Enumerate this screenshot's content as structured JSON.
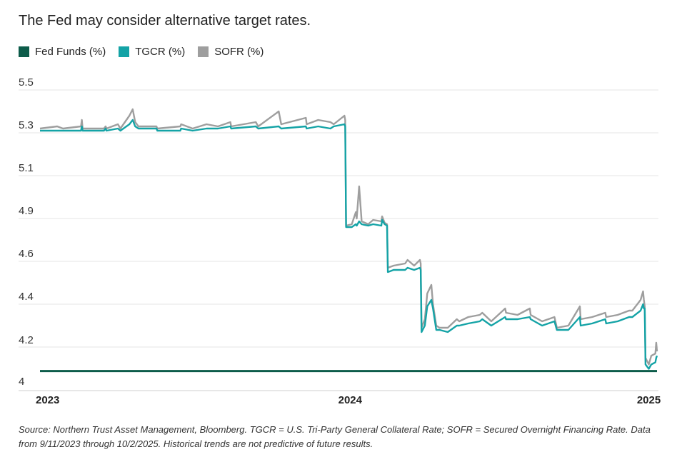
{
  "header": {
    "title": "The Fed may consider alternative target rates."
  },
  "legend": [
    {
      "label": "Fed Funds (%)",
      "color": "#0d5c4a"
    },
    {
      "label": "TGCR (%)",
      "color": "#14a3a6"
    },
    {
      "label": "SOFR (%)",
      "color": "#9e9e9e"
    }
  ],
  "footer": {
    "source": "Source: Northern Trust Asset Management, Bloomberg. TGCR = U.S. Tri-Party General Collateral Rate; SOFR = Secured Overnight Financing Rate. Data from 9/11/2023 through 10/2/2025. Historical trends are not predictive of future results."
  },
  "chart_data": {
    "type": "line",
    "title": "The Fed may consider alternative target rates.",
    "xlabel": "",
    "ylabel": "",
    "xlim": [
      "2023-09-11",
      "2025-10-02"
    ],
    "ylim": [
      4.0,
      5.5
    ],
    "x_tick_labels": [
      {
        "label": "2023",
        "date": "2023-09-11"
      },
      {
        "label": "2024",
        "date": "2024-09-23"
      },
      {
        "label": "2025",
        "date": "2025-09-22"
      }
    ],
    "y_tick_labels": [
      "5.5",
      "5.3",
      "5.1",
      "4.9",
      "4.6",
      "4.4",
      "4.2",
      "4"
    ],
    "y_tick_values": [
      5.5,
      5.3,
      5.1,
      4.9,
      4.6,
      4.4,
      4.2,
      4.0
    ],
    "grid": true,
    "legend_position": "top-left",
    "series": [
      {
        "name": "Fed Funds (%)",
        "color": "#0d5c4a",
        "points": [
          [
            "2023-09-11",
            4.09
          ],
          [
            "2025-10-02",
            4.09
          ]
        ]
      },
      {
        "name": "TGCR (%)",
        "color": "#14a3a6",
        "points": [
          [
            "2023-09-11",
            5.31
          ],
          [
            "2023-10-09",
            5.31
          ],
          [
            "2023-10-31",
            5.31
          ],
          [
            "2023-11-01",
            5.33
          ],
          [
            "2023-11-02",
            5.31
          ],
          [
            "2023-11-28",
            5.31
          ],
          [
            "2023-11-30",
            5.32
          ],
          [
            "2023-12-01",
            5.31
          ],
          [
            "2023-12-15",
            5.32
          ],
          [
            "2023-12-18",
            5.31
          ],
          [
            "2023-12-29",
            5.34
          ],
          [
            "2024-01-02",
            5.36
          ],
          [
            "2024-01-05",
            5.33
          ],
          [
            "2024-01-09",
            5.32
          ],
          [
            "2024-01-31",
            5.32
          ],
          [
            "2024-02-01",
            5.31
          ],
          [
            "2024-02-29",
            5.31
          ],
          [
            "2024-03-01",
            5.32
          ],
          [
            "2024-03-15",
            5.31
          ],
          [
            "2024-04-01",
            5.32
          ],
          [
            "2024-04-15",
            5.32
          ],
          [
            "2024-04-30",
            5.33
          ],
          [
            "2024-05-01",
            5.32
          ],
          [
            "2024-05-31",
            5.33
          ],
          [
            "2024-06-03",
            5.32
          ],
          [
            "2024-06-28",
            5.33
          ],
          [
            "2024-07-01",
            5.32
          ],
          [
            "2024-07-31",
            5.33
          ],
          [
            "2024-08-01",
            5.32
          ],
          [
            "2024-08-15",
            5.33
          ],
          [
            "2024-08-30",
            5.32
          ],
          [
            "2024-09-03",
            5.33
          ],
          [
            "2024-09-16",
            5.34
          ],
          [
            "2024-09-17",
            5.33
          ],
          [
            "2024-09-18",
            4.84
          ],
          [
            "2024-09-25",
            4.84
          ],
          [
            "2024-09-30",
            4.86
          ],
          [
            "2024-10-01",
            4.85
          ],
          [
            "2024-10-04",
            4.88
          ],
          [
            "2024-10-07",
            4.86
          ],
          [
            "2024-10-15",
            4.85
          ],
          [
            "2024-10-21",
            4.86
          ],
          [
            "2024-10-31",
            4.85
          ],
          [
            "2024-11-01",
            4.89
          ],
          [
            "2024-11-04",
            4.86
          ],
          [
            "2024-11-07",
            4.85
          ],
          [
            "2024-11-08",
            4.55
          ],
          [
            "2024-11-15",
            4.56
          ],
          [
            "2024-11-29",
            4.56
          ],
          [
            "2024-12-02",
            4.57
          ],
          [
            "2024-12-10",
            4.56
          ],
          [
            "2024-12-17",
            4.57
          ],
          [
            "2024-12-18",
            4.56
          ],
          [
            "2024-12-19",
            4.27
          ],
          [
            "2024-12-23",
            4.3
          ],
          [
            "2024-12-26",
            4.39
          ],
          [
            "2024-12-31",
            4.42
          ],
          [
            "2025-01-02",
            4.38
          ],
          [
            "2025-01-06",
            4.28
          ],
          [
            "2025-01-10",
            4.28
          ],
          [
            "2025-01-20",
            4.27
          ],
          [
            "2025-01-31",
            4.3
          ],
          [
            "2025-02-03",
            4.3
          ],
          [
            "2025-02-14",
            4.31
          ],
          [
            "2025-02-28",
            4.32
          ],
          [
            "2025-03-03",
            4.33
          ],
          [
            "2025-03-14",
            4.3
          ],
          [
            "2025-03-31",
            4.34
          ],
          [
            "2025-04-01",
            4.33
          ],
          [
            "2025-04-15",
            4.33
          ],
          [
            "2025-04-30",
            4.34
          ],
          [
            "2025-05-01",
            4.33
          ],
          [
            "2025-05-15",
            4.3
          ],
          [
            "2025-05-30",
            4.32
          ],
          [
            "2025-06-02",
            4.28
          ],
          [
            "2025-06-16",
            4.28
          ],
          [
            "2025-06-30",
            4.34
          ],
          [
            "2025-07-01",
            4.3
          ],
          [
            "2025-07-15",
            4.31
          ],
          [
            "2025-07-31",
            4.33
          ],
          [
            "2025-08-01",
            4.31
          ],
          [
            "2025-08-15",
            4.32
          ],
          [
            "2025-08-29",
            4.34
          ],
          [
            "2025-09-02",
            4.34
          ],
          [
            "2025-09-12",
            4.37
          ],
          [
            "2025-09-15",
            4.4
          ],
          [
            "2025-09-16",
            4.38
          ],
          [
            "2025-09-17",
            4.38
          ],
          [
            "2025-09-18",
            4.12
          ],
          [
            "2025-09-22",
            4.1
          ],
          [
            "2025-09-25",
            4.12
          ],
          [
            "2025-09-30",
            4.13
          ],
          [
            "2025-10-01",
            4.15
          ],
          [
            "2025-10-02",
            4.16
          ]
        ]
      },
      {
        "name": "SOFR (%)",
        "color": "#9e9e9e",
        "points": [
          [
            "2023-09-11",
            5.32
          ],
          [
            "2023-10-02",
            5.33
          ],
          [
            "2023-10-09",
            5.32
          ],
          [
            "2023-10-31",
            5.33
          ],
          [
            "2023-11-01",
            5.36
          ],
          [
            "2023-11-02",
            5.32
          ],
          [
            "2023-11-28",
            5.32
          ],
          [
            "2023-11-30",
            5.33
          ],
          [
            "2023-12-01",
            5.32
          ],
          [
            "2023-12-15",
            5.34
          ],
          [
            "2023-12-18",
            5.32
          ],
          [
            "2023-12-29",
            5.38
          ],
          [
            "2024-01-02",
            5.41
          ],
          [
            "2024-01-05",
            5.35
          ],
          [
            "2024-01-09",
            5.33
          ],
          [
            "2024-01-31",
            5.33
          ],
          [
            "2024-02-01",
            5.32
          ],
          [
            "2024-02-29",
            5.33
          ],
          [
            "2024-03-01",
            5.34
          ],
          [
            "2024-03-15",
            5.32
          ],
          [
            "2024-04-01",
            5.34
          ],
          [
            "2024-04-15",
            5.33
          ],
          [
            "2024-04-30",
            5.35
          ],
          [
            "2024-05-01",
            5.33
          ],
          [
            "2024-05-31",
            5.35
          ],
          [
            "2024-06-03",
            5.33
          ],
          [
            "2024-06-28",
            5.4
          ],
          [
            "2024-07-01",
            5.34
          ],
          [
            "2024-07-31",
            5.37
          ],
          [
            "2024-08-01",
            5.34
          ],
          [
            "2024-08-15",
            5.36
          ],
          [
            "2024-08-30",
            5.35
          ],
          [
            "2024-09-03",
            5.34
          ],
          [
            "2024-09-16",
            5.38
          ],
          [
            "2024-09-17",
            5.36
          ],
          [
            "2024-09-18",
            4.85
          ],
          [
            "2024-09-25",
            4.86
          ],
          [
            "2024-09-30",
            4.93
          ],
          [
            "2024-10-01",
            4.9
          ],
          [
            "2024-10-04",
            5.05
          ],
          [
            "2024-10-07",
            4.88
          ],
          [
            "2024-10-15",
            4.86
          ],
          [
            "2024-10-21",
            4.89
          ],
          [
            "2024-10-31",
            4.88
          ],
          [
            "2024-11-01",
            4.91
          ],
          [
            "2024-11-04",
            4.87
          ],
          [
            "2024-11-07",
            4.86
          ],
          [
            "2024-11-08",
            4.57
          ],
          [
            "2024-11-15",
            4.58
          ],
          [
            "2024-11-29",
            4.59
          ],
          [
            "2024-12-02",
            4.61
          ],
          [
            "2024-12-10",
            4.58
          ],
          [
            "2024-12-17",
            4.61
          ],
          [
            "2024-12-18",
            4.59
          ],
          [
            "2024-12-19",
            4.29
          ],
          [
            "2024-12-23",
            4.33
          ],
          [
            "2024-12-26",
            4.45
          ],
          [
            "2024-12-31",
            4.49
          ],
          [
            "2025-01-02",
            4.4
          ],
          [
            "2025-01-06",
            4.3
          ],
          [
            "2025-01-10",
            4.29
          ],
          [
            "2025-01-20",
            4.29
          ],
          [
            "2025-01-31",
            4.33
          ],
          [
            "2025-02-03",
            4.32
          ],
          [
            "2025-02-14",
            4.34
          ],
          [
            "2025-02-28",
            4.35
          ],
          [
            "2025-03-03",
            4.36
          ],
          [
            "2025-03-14",
            4.32
          ],
          [
            "2025-03-31",
            4.38
          ],
          [
            "2025-04-01",
            4.36
          ],
          [
            "2025-04-15",
            4.35
          ],
          [
            "2025-04-30",
            4.38
          ],
          [
            "2025-05-01",
            4.35
          ],
          [
            "2025-05-15",
            4.32
          ],
          [
            "2025-05-30",
            4.34
          ],
          [
            "2025-06-02",
            4.29
          ],
          [
            "2025-06-16",
            4.3
          ],
          [
            "2025-06-30",
            4.39
          ],
          [
            "2025-07-01",
            4.33
          ],
          [
            "2025-07-15",
            4.34
          ],
          [
            "2025-07-31",
            4.36
          ],
          [
            "2025-08-01",
            4.34
          ],
          [
            "2025-08-15",
            4.35
          ],
          [
            "2025-08-29",
            4.37
          ],
          [
            "2025-09-02",
            4.37
          ],
          [
            "2025-09-12",
            4.42
          ],
          [
            "2025-09-15",
            4.46
          ],
          [
            "2025-09-16",
            4.42
          ],
          [
            "2025-09-17",
            4.39
          ],
          [
            "2025-09-18",
            4.15
          ],
          [
            "2025-09-22",
            4.12
          ],
          [
            "2025-09-25",
            4.16
          ],
          [
            "2025-09-30",
            4.17
          ],
          [
            "2025-10-01",
            4.22
          ],
          [
            "2025-10-02",
            4.18
          ]
        ]
      }
    ]
  }
}
